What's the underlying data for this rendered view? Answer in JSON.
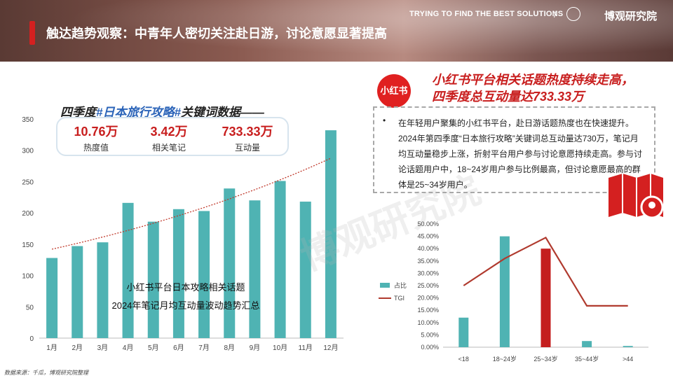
{
  "header": {
    "title": "触达趋势观察：中青年人密切关注赴日游，讨论意愿显著提高",
    "tagline": "TRYING TO FIND THE BEST SOLUTIONS",
    "brand": "博观研究院"
  },
  "keyword": {
    "title_prefix": "四季度",
    "title_highlight": "#日本旅行攻略#",
    "title_suffix": "关键词数据——",
    "stats": [
      {
        "value": "10.76万",
        "label": "热度值"
      },
      {
        "value": "3.42万",
        "label": "相关笔记"
      },
      {
        "value": "733.33万",
        "label": "互动量"
      }
    ]
  },
  "overlay_text": [
    "小红书平台日本攻略相关话题",
    "2024年笔记月均互动量波动趋势汇总"
  ],
  "right": {
    "logo_text": "小红书",
    "title_line1": "小红书平台相关话题热度持续走高，",
    "title_line2": "四季度总互动量达733.33万",
    "bullet": "•",
    "description": "在年轻用户聚集的小红书平台，赴日游话题热度也在快速提升。2024年第四季度“日本旅行攻略”关键词总互动量达730万，笔记月均互动量稳步上涨，折射平台用户参与讨论意愿持续走高。参与讨论话题用户中，18~24岁用户参与比例最高，但讨论意愿最高的群体是25~34岁用户。"
  },
  "watermark": "博观研究院",
  "footer": "数据来源：千瓜，博观研究院整理",
  "colors": {
    "teal": "#4fb3b3",
    "red": "#c41e1e",
    "trend": "#c0392b",
    "tgi": "#b03a2e"
  },
  "chart_data": [
    {
      "type": "bar",
      "categories": [
        "1月",
        "2月",
        "3月",
        "4月",
        "5月",
        "6月",
        "7月",
        "8月",
        "9月",
        "10月",
        "11月",
        "12月"
      ],
      "values": [
        128,
        147,
        153,
        216,
        186,
        206,
        203,
        239,
        220,
        251,
        218,
        332
      ],
      "ylim": [
        0,
        350
      ],
      "yticks": [
        0,
        50,
        100,
        150,
        200,
        250,
        300,
        350
      ],
      "trendline": "exponential",
      "grid": false
    },
    {
      "type": "bar",
      "categories": [
        "<18",
        "18~24岁",
        "25~34岁",
        "35~44岁",
        ">44"
      ],
      "series": [
        {
          "name": "占比",
          "type": "bar",
          "values": [
            12.0,
            45.0,
            40.0,
            2.5,
            0.5
          ],
          "highlight_index": 2
        },
        {
          "name": "TGI",
          "type": "line",
          "values": [
            25.0,
            36.0,
            44.5,
            16.8,
            16.8
          ]
        }
      ],
      "yticks": [
        "0.00%",
        "5.00%",
        "10.00%",
        "15.00%",
        "20.00%",
        "25.00%",
        "30.00%",
        "35.00%",
        "40.00%",
        "45.00%",
        "50.00%"
      ],
      "ylim": [
        0,
        50
      ],
      "legend": "left"
    }
  ]
}
